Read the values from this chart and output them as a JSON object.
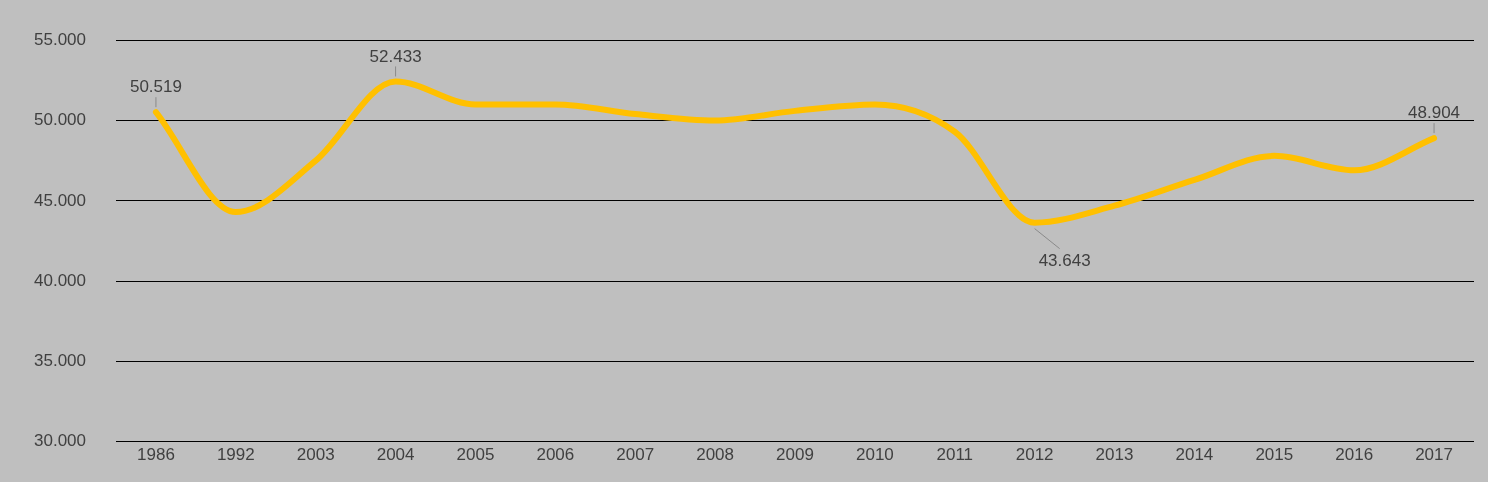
{
  "chart_data": {
    "type": "line",
    "categories": [
      "1986",
      "1992",
      "2003",
      "2004",
      "2005",
      "2006",
      "2007",
      "2008",
      "2009",
      "2010",
      "2011",
      "2012",
      "2013",
      "2014",
      "2015",
      "2016",
      "2017"
    ],
    "series": [
      {
        "color": "#ffc000",
        "values": [
          50519,
          44300,
          47500,
          52433,
          51000,
          51000,
          50400,
          50000,
          50600,
          51000,
          49300,
          43643,
          44700,
          46300,
          47800,
          46900,
          48904
        ],
        "value_labels": [
          "50.519",
          null,
          null,
          "52.433",
          null,
          null,
          null,
          null,
          null,
          null,
          null,
          "43.643",
          null,
          null,
          null,
          null,
          "48.904"
        ]
      }
    ],
    "ylim": [
      30000,
      55000
    ],
    "yticks": [
      {
        "value": 30000,
        "label": "30.000"
      },
      {
        "value": 35000,
        "label": "35.000"
      },
      {
        "value": 40000,
        "label": "40.000"
      },
      {
        "value": 45000,
        "label": "45.000"
      },
      {
        "value": 50000,
        "label": "50.000"
      },
      {
        "value": 55000,
        "label": "55.000"
      }
    ],
    "grid": "y",
    "legend": false,
    "marker": "none",
    "line_style": "solid"
  }
}
